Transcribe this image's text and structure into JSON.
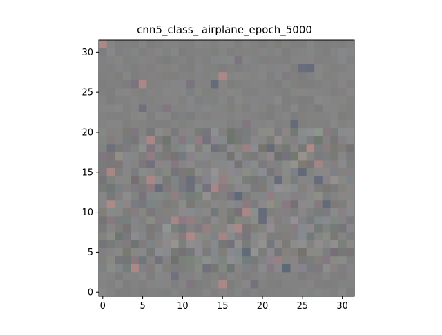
{
  "chart_data": {
    "type": "heatmap",
    "title": "cnn5_class_ airplane_epoch_5000",
    "xlabel": "",
    "ylabel": "",
    "image_size": [
      32,
      32
    ],
    "xlim": [
      -0.5,
      31.5
    ],
    "ylim": [
      31.5,
      -0.5
    ],
    "x_ticks": [
      0,
      5,
      10,
      15,
      20,
      25,
      30
    ],
    "y_ticks": [
      0,
      5,
      10,
      15,
      20,
      25,
      30
    ],
    "grid": false,
    "base_color": "#828282",
    "pixel_color_range": [
      "#5d6878",
      "#b08a88"
    ],
    "dominant_appearance": "noisy gray RGB pixel pattern with darker and colored patches mostly in rows 12-28"
  }
}
